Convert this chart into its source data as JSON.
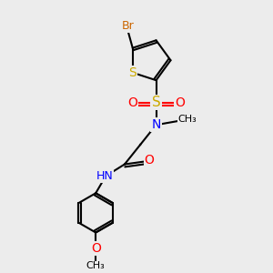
{
  "bg_color": "#ececec",
  "bond_color": "#000000",
  "colors": {
    "Br": "#cc6600",
    "S": "#ccaa00",
    "O": "#ff0000",
    "N": "#0000ff",
    "C": "#000000",
    "H": "#4a9090"
  },
  "font_size": 9,
  "bond_width": 1.5,
  "figsize": [
    3.0,
    3.0
  ],
  "dpi": 100,
  "xlim": [
    0,
    10
  ],
  "ylim": [
    0,
    10
  ]
}
